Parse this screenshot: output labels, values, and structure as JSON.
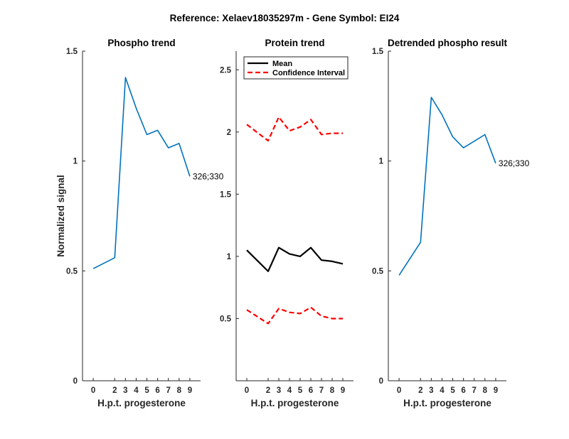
{
  "figure": {
    "suptitle": "Reference:  Xelaev18035297m - Gene Symbol:  EI24"
  },
  "chart_data": [
    {
      "type": "line",
      "title": "Phospho trend",
      "xlabel": "H.p.t. progesterone",
      "ylabel": "Normalized signal",
      "x": [
        0,
        2,
        3,
        4,
        5,
        6,
        7,
        8,
        9
      ],
      "x_tick_labels": [
        "0",
        "2",
        "3",
        "4",
        "5",
        "6",
        "7",
        "8",
        "9"
      ],
      "ylim": [
        0,
        1.5
      ],
      "y_ticks": [
        0,
        0.5,
        1,
        1.5
      ],
      "y_tick_labels": [
        "0",
        "0.5",
        "1",
        "1.5"
      ],
      "series": [
        {
          "color": "#0072BD",
          "style": "solid",
          "values": [
            0.51,
            0.56,
            1.38,
            1.24,
            1.12,
            1.14,
            1.06,
            1.08,
            0.93
          ]
        }
      ],
      "annotation": {
        "text": "326;330",
        "at_index": 8
      },
      "grid": false,
      "legend": null
    },
    {
      "type": "line",
      "title": "Protein trend",
      "xlabel": "H.p.t. progesterone",
      "ylabel": "",
      "x": [
        0,
        2,
        3,
        4,
        5,
        6,
        7,
        8,
        9
      ],
      "x_tick_labels": [
        "0",
        "2",
        "3",
        "4",
        "5",
        "6",
        "7",
        "8",
        "9"
      ],
      "ylim": [
        0,
        2.65
      ],
      "y_ticks": [
        0.5,
        1,
        1.5,
        2,
        2.5
      ],
      "y_tick_labels": [
        "0.5",
        "1",
        "1.5",
        "2",
        "2.5"
      ],
      "series": [
        {
          "name": "Mean",
          "color": "#000000",
          "style": "solid",
          "values": [
            1.05,
            0.88,
            1.07,
            1.02,
            1.0,
            1.07,
            0.97,
            0.96,
            0.94
          ]
        },
        {
          "name": "Confidence Interval",
          "color": "#FF0000",
          "style": "dashed",
          "values": [
            2.06,
            1.93,
            2.12,
            2.01,
            2.04,
            2.1,
            1.98,
            1.99,
            1.99
          ]
        },
        {
          "color": "#FF0000",
          "style": "dashed",
          "values": [
            0.57,
            0.46,
            0.58,
            0.55,
            0.54,
            0.59,
            0.52,
            0.5,
            0.5
          ]
        }
      ],
      "legend": {
        "position": "top-left",
        "entries": [
          "Mean",
          "Confidence Interval"
        ]
      },
      "grid": false
    },
    {
      "type": "line",
      "title": "Detrended phospho result",
      "xlabel": "H.p.t. progesterone",
      "ylabel": "",
      "x": [
        0,
        2,
        3,
        4,
        5,
        6,
        7,
        8,
        9
      ],
      "x_tick_labels": [
        "0",
        "2",
        "3",
        "4",
        "5",
        "6",
        "7",
        "8",
        "9"
      ],
      "ylim": [
        0,
        1.5
      ],
      "y_ticks": [
        0,
        0.5,
        1,
        1.5
      ],
      "y_tick_labels": [
        "0",
        "0.5",
        "1",
        "1.5"
      ],
      "series": [
        {
          "color": "#0072BD",
          "style": "solid",
          "values": [
            0.48,
            0.63,
            1.29,
            1.21,
            1.11,
            1.06,
            1.09,
            1.12,
            0.99
          ]
        }
      ],
      "annotation": {
        "text": "326;330",
        "at_index": 8
      },
      "grid": false,
      "legend": null
    }
  ]
}
